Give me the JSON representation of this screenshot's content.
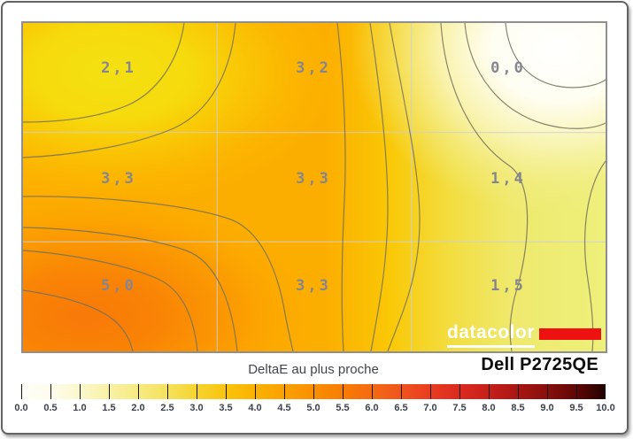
{
  "frame": {
    "device_title": "Dell P2725QE",
    "legend_label": "DeltaE au plus proche"
  },
  "watermark": {
    "brand": "datacolor",
    "bar_color": "#ee1111"
  },
  "chart_data": {
    "type": "heatmap",
    "title": "DeltaE au plus proche",
    "device": "Dell P2725QE",
    "grid": {
      "rows": 3,
      "cols": 3,
      "gridlines": "light-gray thirds"
    },
    "value_label_color": "#85858f",
    "cells": [
      {
        "row": 0,
        "col": 0,
        "label": "2,1",
        "value": 2.1
      },
      {
        "row": 0,
        "col": 1,
        "label": "3,2",
        "value": 3.2
      },
      {
        "row": 0,
        "col": 2,
        "label": "0,0",
        "value": 0.0
      },
      {
        "row": 1,
        "col": 0,
        "label": "3,3",
        "value": 3.3
      },
      {
        "row": 1,
        "col": 1,
        "label": "3,3",
        "value": 3.3
      },
      {
        "row": 1,
        "col": 2,
        "label": "1,4",
        "value": 1.4
      },
      {
        "row": 2,
        "col": 0,
        "label": "5,0",
        "value": 5.0
      },
      {
        "row": 2,
        "col": 1,
        "label": "3,3",
        "value": 3.3
      },
      {
        "row": 2,
        "col": 2,
        "label": "1,5",
        "value": 1.5
      }
    ],
    "colorbar": {
      "min": 0.0,
      "max": 10.0,
      "step": 0.5,
      "tick_labels": [
        "0.0",
        "0.5",
        "1.0",
        "1.5",
        "2.0",
        "2.5",
        "3.0",
        "3.5",
        "4.0",
        "4.5",
        "5.0",
        "5.5",
        "6.0",
        "6.5",
        "7.0",
        "7.5",
        "8.0",
        "8.5",
        "9.0",
        "9.5",
        "10.0"
      ],
      "gradient_stops": [
        "#fffef8 0%",
        "#fefced 5%",
        "#fbf8cc 10%",
        "#f8f1a6 15%",
        "#f7ea80 20%",
        "#f5e15c 25%",
        "#f6d42f 30%",
        "#f9c40d 35%",
        "#fbb200 40%",
        "#fba100 45%",
        "#fa8f00 50%",
        "#f87d02 55%",
        "#f56a12 60%",
        "#f0541d 65%",
        "#e93c20 70%",
        "#dc2a1f 75%",
        "#c71f1a 80%",
        "#a91613 85%",
        "#880f0c 90%",
        "#5f0806 95%",
        "#200100 100%"
      ]
    }
  }
}
